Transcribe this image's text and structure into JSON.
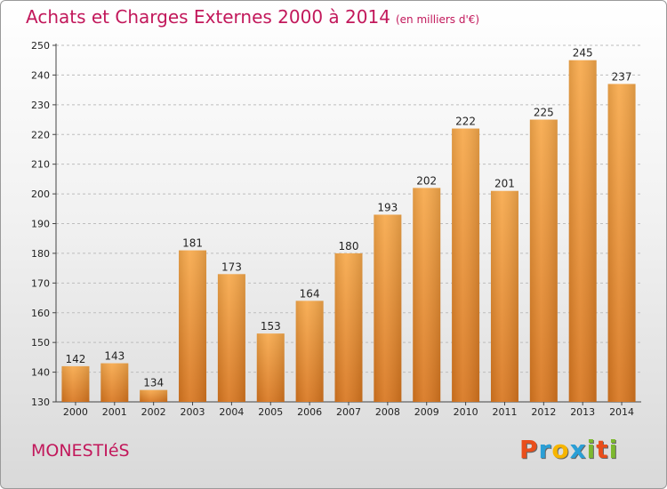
{
  "title": "Achats et Charges Externes 2000 à 2014",
  "unit": "(en milliers d'€)",
  "commune": "MONESTIéS",
  "logo": {
    "letters": [
      "P",
      "r",
      "o",
      "x",
      "i",
      "t",
      "i"
    ],
    "colors": [
      "#e94e1b",
      "#2a9fd6",
      "#f7b500",
      "#2a9fd6",
      "#7cb82f",
      "#e94e1b",
      "#7cb82f"
    ]
  },
  "colors": {
    "bar_top": "#f7a94b",
    "bar_bottom": "#d8761f",
    "title": "#c2185b",
    "grid": "#bdbdbd"
  },
  "chart_data": {
    "type": "bar",
    "title": "Achats et Charges Externes 2000 à 2014",
    "categories": [
      "2000",
      "2001",
      "2002",
      "2003",
      "2004",
      "2005",
      "2006",
      "2007",
      "2008",
      "2009",
      "2010",
      "2011",
      "2012",
      "2013",
      "2014"
    ],
    "values": [
      142,
      143,
      134,
      181,
      173,
      153,
      164,
      180,
      193,
      202,
      222,
      201,
      225,
      245,
      237
    ],
    "ylim": [
      130,
      250
    ],
    "yticks": [
      130,
      140,
      150,
      160,
      170,
      180,
      190,
      200,
      210,
      220,
      230,
      240,
      250
    ],
    "grid": true,
    "xlabel": "",
    "ylabel": ""
  }
}
